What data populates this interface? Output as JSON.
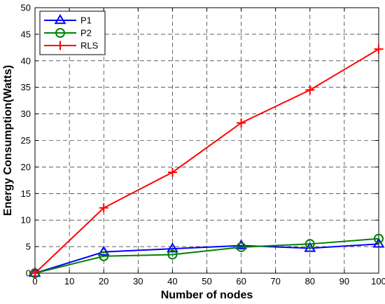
{
  "chart_data": {
    "type": "line",
    "xlabel": "Number of nodes",
    "ylabel": "Energy Consumption(Watts)",
    "xlim": [
      0,
      100
    ],
    "ylim": [
      0,
      50
    ],
    "xticks": [
      0,
      10,
      20,
      30,
      40,
      50,
      60,
      70,
      80,
      90,
      100
    ],
    "yticks": [
      0,
      5,
      10,
      15,
      20,
      25,
      30,
      35,
      40,
      45,
      50
    ],
    "grid": true,
    "legend_position": "top-left",
    "x": [
      0,
      20,
      40,
      60,
      80,
      100
    ],
    "series": [
      {
        "name": "P1",
        "color": "#0000ff",
        "marker": "triangle",
        "values": [
          0,
          4.0,
          4.6,
          5.2,
          4.7,
          5.5
        ]
      },
      {
        "name": "P2",
        "color": "#008000",
        "marker": "circle",
        "values": [
          0,
          3.2,
          3.5,
          4.9,
          5.5,
          6.5
        ]
      },
      {
        "name": "RLS",
        "color": "#ff0000",
        "marker": "plus",
        "values": [
          0,
          12.3,
          19.0,
          28.3,
          34.5,
          42.2
        ]
      }
    ]
  }
}
